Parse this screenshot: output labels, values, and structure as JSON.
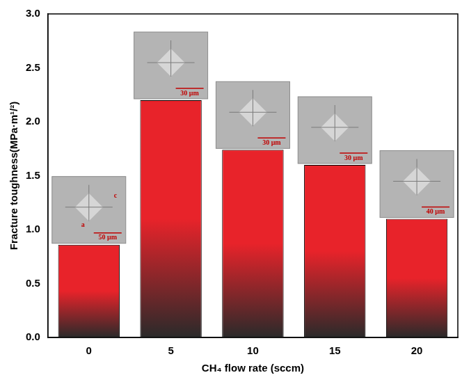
{
  "chart_data": {
    "type": "bar",
    "x_label": "CH₄ flow rate (sccm)",
    "y_label": "Fracture toughness(MPa·m¹/²)",
    "categories": [
      "0",
      "5",
      "10",
      "15",
      "20"
    ],
    "values": [
      0.86,
      2.2,
      1.74,
      1.6,
      1.1
    ],
    "color": "#e8232a",
    "ylim": [
      0,
      3
    ],
    "yticks": [
      {
        "value": 0,
        "label": "0.0"
      },
      0.5,
      {
        "value": 1,
        "label": "1.0"
      },
      1.5,
      {
        "value": 2,
        "label": "2.0"
      },
      2.5,
      {
        "value": 3,
        "label": "3.0"
      }
    ],
    "grid": false,
    "insets": [
      {
        "scale_bar": "50 μm",
        "labels": [
          "c",
          "a"
        ]
      },
      {
        "scale_bar": "30 μm"
      },
      {
        "scale_bar": "30 μm"
      },
      {
        "scale_bar": "30 μm"
      },
      {
        "scale_bar": "40 μm"
      }
    ]
  }
}
